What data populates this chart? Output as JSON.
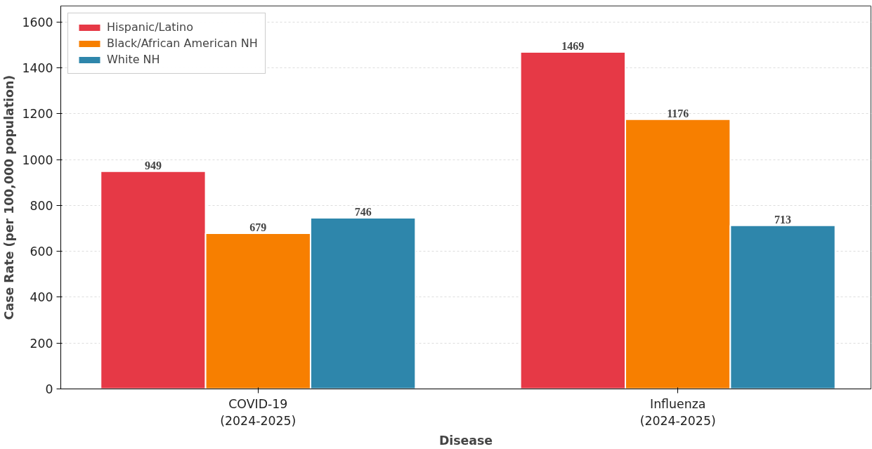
{
  "chart_data": {
    "type": "bar",
    "xlabel": "Disease",
    "ylabel": "Case Rate (per 100,000 population)",
    "categories": [
      "COVID-19\n(2024-2025)",
      "Influenza\n(2024-2025)"
    ],
    "series": [
      {
        "name": "Hispanic/Latino",
        "color": "#e63946",
        "values": [
          949,
          1469
        ]
      },
      {
        "name": "Black/African American NH",
        "color": "#f77f00",
        "values": [
          679,
          1176
        ]
      },
      {
        "name": "White NH",
        "color": "#2e86ab",
        "values": [
          746,
          713
        ]
      }
    ],
    "ylim": [
      0,
      1670
    ],
    "yticks": [
      0,
      200,
      400,
      600,
      800,
      1000,
      1200,
      1400,
      1600
    ],
    "grid": "y",
    "legend": "top left",
    "data_labels": true
  }
}
